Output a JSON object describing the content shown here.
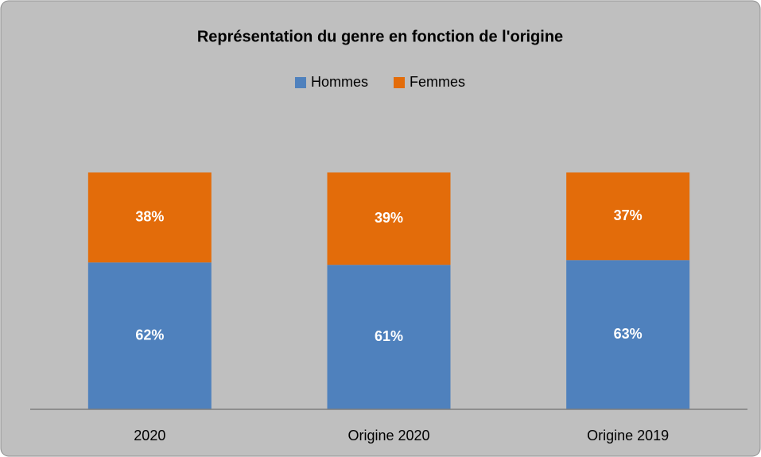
{
  "chart_data": {
    "type": "bar",
    "stacked": true,
    "title": "Représentation du genre en fonction de l'origine",
    "categories": [
      "2020",
      "Origine 2020",
      "Origine 2019"
    ],
    "series": [
      {
        "name": "Hommes",
        "color": "#4f81bd",
        "values": [
          62,
          61,
          63
        ],
        "value_labels": [
          "62%",
          "61%",
          "63%"
        ]
      },
      {
        "name": "Femmes",
        "color": "#e36c0a",
        "values": [
          38,
          39,
          37
        ],
        "value_labels": [
          "38%",
          "39%",
          "37%"
        ]
      }
    ],
    "ylim": [
      0,
      100
    ],
    "legend": "top"
  }
}
